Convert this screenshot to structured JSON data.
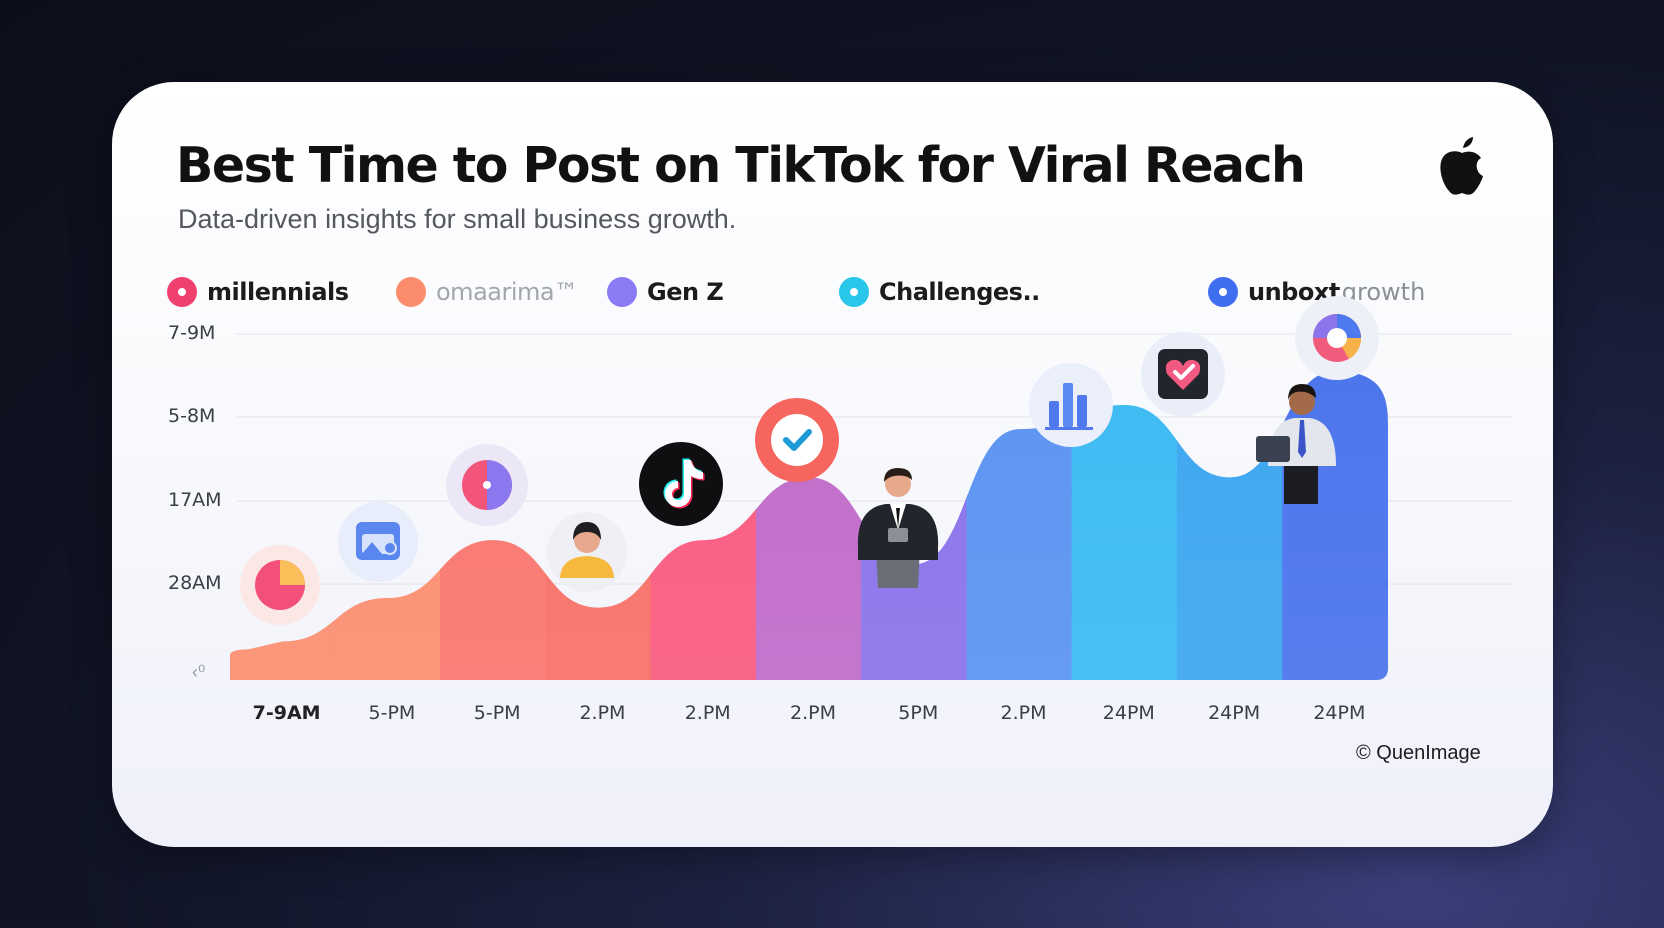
{
  "title": "Best Time to Post on TikTok for Viral Reach",
  "subtitle": "Data-driven insights for small business growth.",
  "legend": [
    {
      "label": "millennials",
      "suffix": "",
      "color": "#f0416e",
      "faded": false
    },
    {
      "label": "omaarima™",
      "suffix": "",
      "color": "#fb8c6c",
      "faded": true
    },
    {
      "label": "Gen Z",
      "suffix": "",
      "color": "#8b7cf6",
      "faded": false
    },
    {
      "label": "Challenges..",
      "suffix": "",
      "color": "#28c6e8",
      "faded": false
    },
    {
      "label": "unboxt",
      "suffix": "growth",
      "color": "#3f6ef0",
      "faded": false
    }
  ],
  "y_glyph": "‹⁰",
  "copyright": "© QuenImage",
  "icons": [
    "pie-chart-icon",
    "photo-icon",
    "color-wheel-icon",
    "person-icon",
    "tiktok-logo-icon",
    "checkmark-icon",
    "businessman-icon",
    "bar-chart-icon",
    "heart-check-icon",
    "man-with-tablet-icon",
    "donut-chart-icon"
  ],
  "chart_data": {
    "type": "area",
    "title": "Best Time to Post on TikTok for Viral Reach",
    "categories": [
      "7-9AM",
      "5-PM",
      "5-PM",
      "2.PM",
      "2.PM",
      "2.PM",
      "5PM",
      "2.PM",
      "24PM",
      "24PM",
      "24PM"
    ],
    "values": [
      0.8,
      1.7,
      2.9,
      1.5,
      2.9,
      4.2,
      2.4,
      5.2,
      5.7,
      4.2,
      6.4
    ],
    "y_tick_labels": [
      "7-9M",
      "5-8M",
      "17AM",
      "28AM"
    ],
    "ylim": [
      0,
      8
    ],
    "colors": [
      "#fb8e70",
      "#fb8e70",
      "#f9766d",
      "#f77066",
      "#fa5a7f",
      "#c06bc9",
      "#8a72ea",
      "#5a93f2",
      "#3bbaf2",
      "#3ba6f0",
      "#4a73ec"
    ],
    "grid": true,
    "legend_position": "top"
  }
}
